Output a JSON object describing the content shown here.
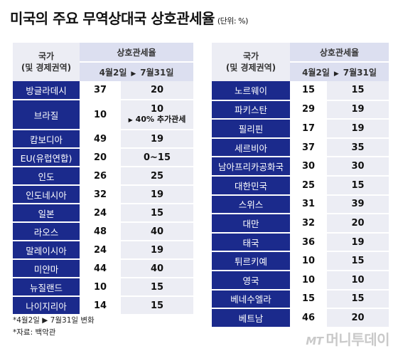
{
  "title": "미국의 주요 무역상대국 상호관세율",
  "unit": "(단위: %)",
  "headers": {
    "country_line1": "국가",
    "country_line2": "(및 경제권역)",
    "tariff": "상호관세율",
    "date_from": "4월2일",
    "date_to": "7월31일",
    "arrow": "▶"
  },
  "left_rows": [
    {
      "country": "방글라데시",
      "apr": "37",
      "jul": "20"
    },
    {
      "country": "브라질",
      "apr": "10",
      "jul": "10",
      "note_arrow": "▶",
      "note": "40% 추가관세"
    },
    {
      "country": "캄보디아",
      "apr": "49",
      "jul": "19"
    },
    {
      "country": "EU(유럽연합)",
      "apr": "20",
      "jul": "0~15"
    },
    {
      "country": "인도",
      "apr": "26",
      "jul": "25"
    },
    {
      "country": "인도네시아",
      "apr": "32",
      "jul": "19"
    },
    {
      "country": "일본",
      "apr": "24",
      "jul": "15"
    },
    {
      "country": "라오스",
      "apr": "48",
      "jul": "40"
    },
    {
      "country": "말레이시아",
      "apr": "24",
      "jul": "19"
    },
    {
      "country": "미얀마",
      "apr": "44",
      "jul": "40"
    },
    {
      "country": "뉴질랜드",
      "apr": "10",
      "jul": "15"
    },
    {
      "country": "나이지리아",
      "apr": "14",
      "jul": "15"
    }
  ],
  "right_rows": [
    {
      "country": "노르웨이",
      "apr": "15",
      "jul": "15"
    },
    {
      "country": "파키스탄",
      "apr": "29",
      "jul": "19"
    },
    {
      "country": "필리핀",
      "apr": "17",
      "jul": "19"
    },
    {
      "country": "세르비아",
      "apr": "37",
      "jul": "35"
    },
    {
      "country": "남아프리카공화국",
      "apr": "30",
      "jul": "30"
    },
    {
      "country": "대한민국",
      "apr": "25",
      "jul": "15"
    },
    {
      "country": "스위스",
      "apr": "31",
      "jul": "39"
    },
    {
      "country": "대만",
      "apr": "32",
      "jul": "20"
    },
    {
      "country": "태국",
      "apr": "36",
      "jul": "19"
    },
    {
      "country": "튀르키예",
      "apr": "10",
      "jul": "15"
    },
    {
      "country": "영국",
      "apr": "10",
      "jul": "10"
    },
    {
      "country": "베네수엘라",
      "apr": "15",
      "jul": "15"
    },
    {
      "country": "베트남",
      "apr": "46",
      "jul": "20"
    }
  ],
  "footer": {
    "note": "*4월2일 ▶ 7월31일 변화",
    "source": "*자료: 백악관"
  },
  "logo": {
    "mt": "MT",
    "name": "머니투데이"
  }
}
